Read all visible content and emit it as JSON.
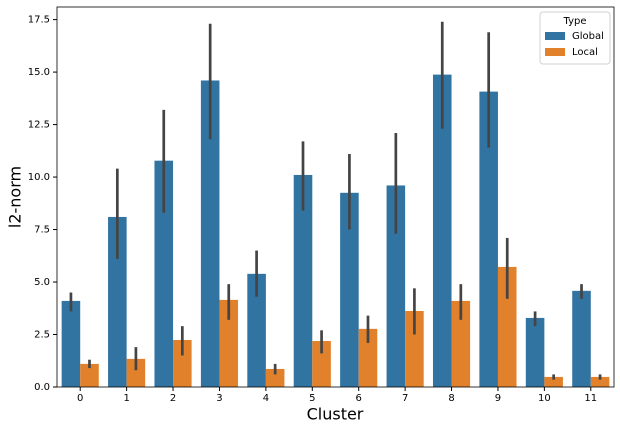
{
  "chart_data": {
    "type": "bar",
    "xlabel": "Cluster",
    "ylabel": "l2-norm",
    "categories": [
      "0",
      "1",
      "2",
      "3",
      "4",
      "5",
      "6",
      "7",
      "8",
      "9",
      "10",
      "11"
    ],
    "series": [
      {
        "name": "Global",
        "color": "#3274a1",
        "values": [
          4.1,
          8.1,
          10.78,
          14.6,
          5.39,
          10.1,
          9.25,
          9.6,
          14.88,
          14.07,
          3.29,
          4.58
        ],
        "ci_low": [
          3.6,
          6.1,
          8.3,
          11.8,
          4.3,
          8.4,
          7.5,
          7.3,
          12.3,
          11.4,
          2.9,
          4.2
        ],
        "ci_high": [
          4.5,
          10.4,
          13.2,
          17.3,
          6.5,
          11.7,
          11.1,
          12.1,
          17.4,
          16.9,
          3.6,
          4.9
        ]
      },
      {
        "name": "Local",
        "color": "#e1812c",
        "values": [
          1.1,
          1.34,
          2.24,
          4.15,
          0.86,
          2.19,
          2.77,
          3.62,
          4.1,
          5.72,
          0.48,
          0.48
        ],
        "ci_low": [
          0.9,
          0.8,
          1.5,
          3.2,
          0.6,
          1.6,
          2.1,
          2.5,
          3.2,
          4.2,
          0.35,
          0.35
        ],
        "ci_high": [
          1.3,
          1.9,
          2.9,
          4.9,
          1.1,
          2.7,
          3.4,
          4.7,
          4.9,
          7.1,
          0.6,
          0.6
        ]
      }
    ],
    "ylim": [
      0,
      18.1
    ],
    "yticks": [
      {
        "value": 0,
        "label": "0.0"
      },
      2.5,
      {
        "value": 5,
        "label": "5.0"
      },
      7.5,
      {
        "value": 10,
        "label": "10.0"
      },
      12.5,
      {
        "value": 15,
        "label": "15.0"
      },
      17.5
    ],
    "legend_title": "Type",
    "legend_position": "upper right",
    "error_color": "#444444"
  }
}
